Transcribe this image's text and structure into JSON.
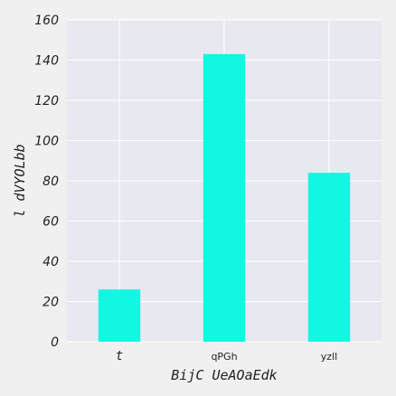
{
  "chart_data": {
    "type": "bar",
    "title": "",
    "xlabel": "BijC UeAOaEdk",
    "ylabel": "l dVYOLbb",
    "categories": [
      "t",
      "qPGh",
      "yzll"
    ],
    "values": [
      26,
      143,
      84
    ],
    "ylim": [
      0,
      160
    ],
    "yticks": [
      0,
      20,
      40,
      60,
      80,
      100,
      120,
      140,
      160
    ],
    "grid": true,
    "colors": {
      "bar": "#12f7e0",
      "plot_background": "#e8e8f0",
      "page_background": "#f0f0f0",
      "grid": "#ffffff"
    }
  }
}
